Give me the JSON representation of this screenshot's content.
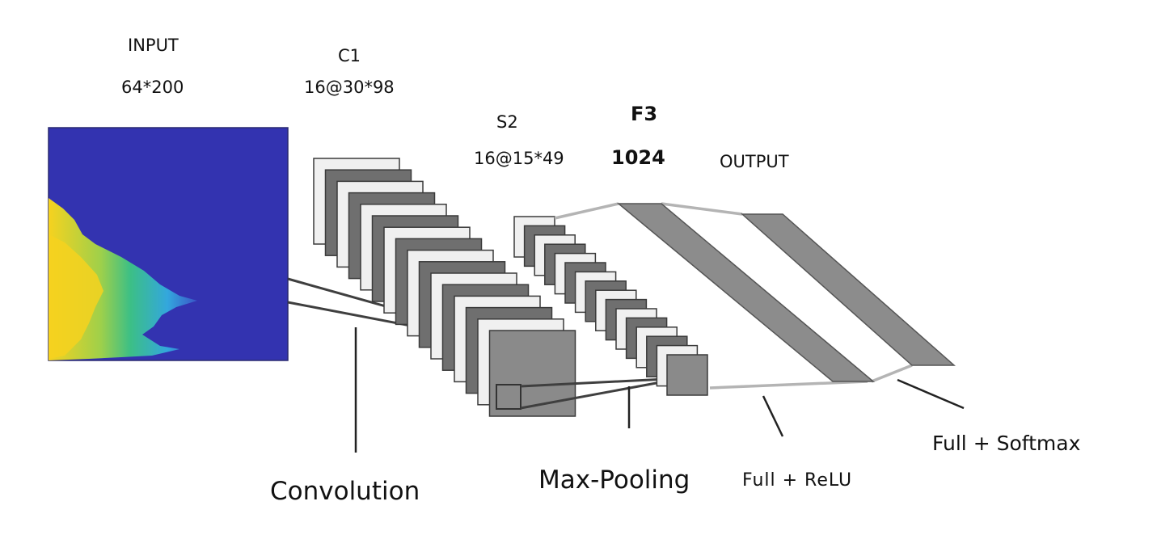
{
  "layers": {
    "input": {
      "name": "INPUT",
      "shape": "64*200"
    },
    "c1": {
      "name": "C1",
      "shape": "16@30*98"
    },
    "s2": {
      "name": "S2",
      "shape": "16@15*49"
    },
    "f3": {
      "name": "F3",
      "shape": "1024"
    },
    "output": {
      "name": "OUTPUT"
    }
  },
  "operations": {
    "convolution": "Convolution",
    "max_pooling": "Max-Pooling",
    "full_relu": "Full + ReLU",
    "full_softmax": "Full + Softmax"
  },
  "colors": {
    "spectrogram_background": "#3333b0",
    "spectrogram_yellow": "#f6d21f",
    "spectrogram_green": "#3cbf86",
    "spectrogram_cyan": "#33a7dd",
    "feature_map_front": "#8a8a8a",
    "feature_map_back": "#f0f0f0",
    "dense_band": "#8c8c8c",
    "connector_line": "#b4b4b4"
  }
}
